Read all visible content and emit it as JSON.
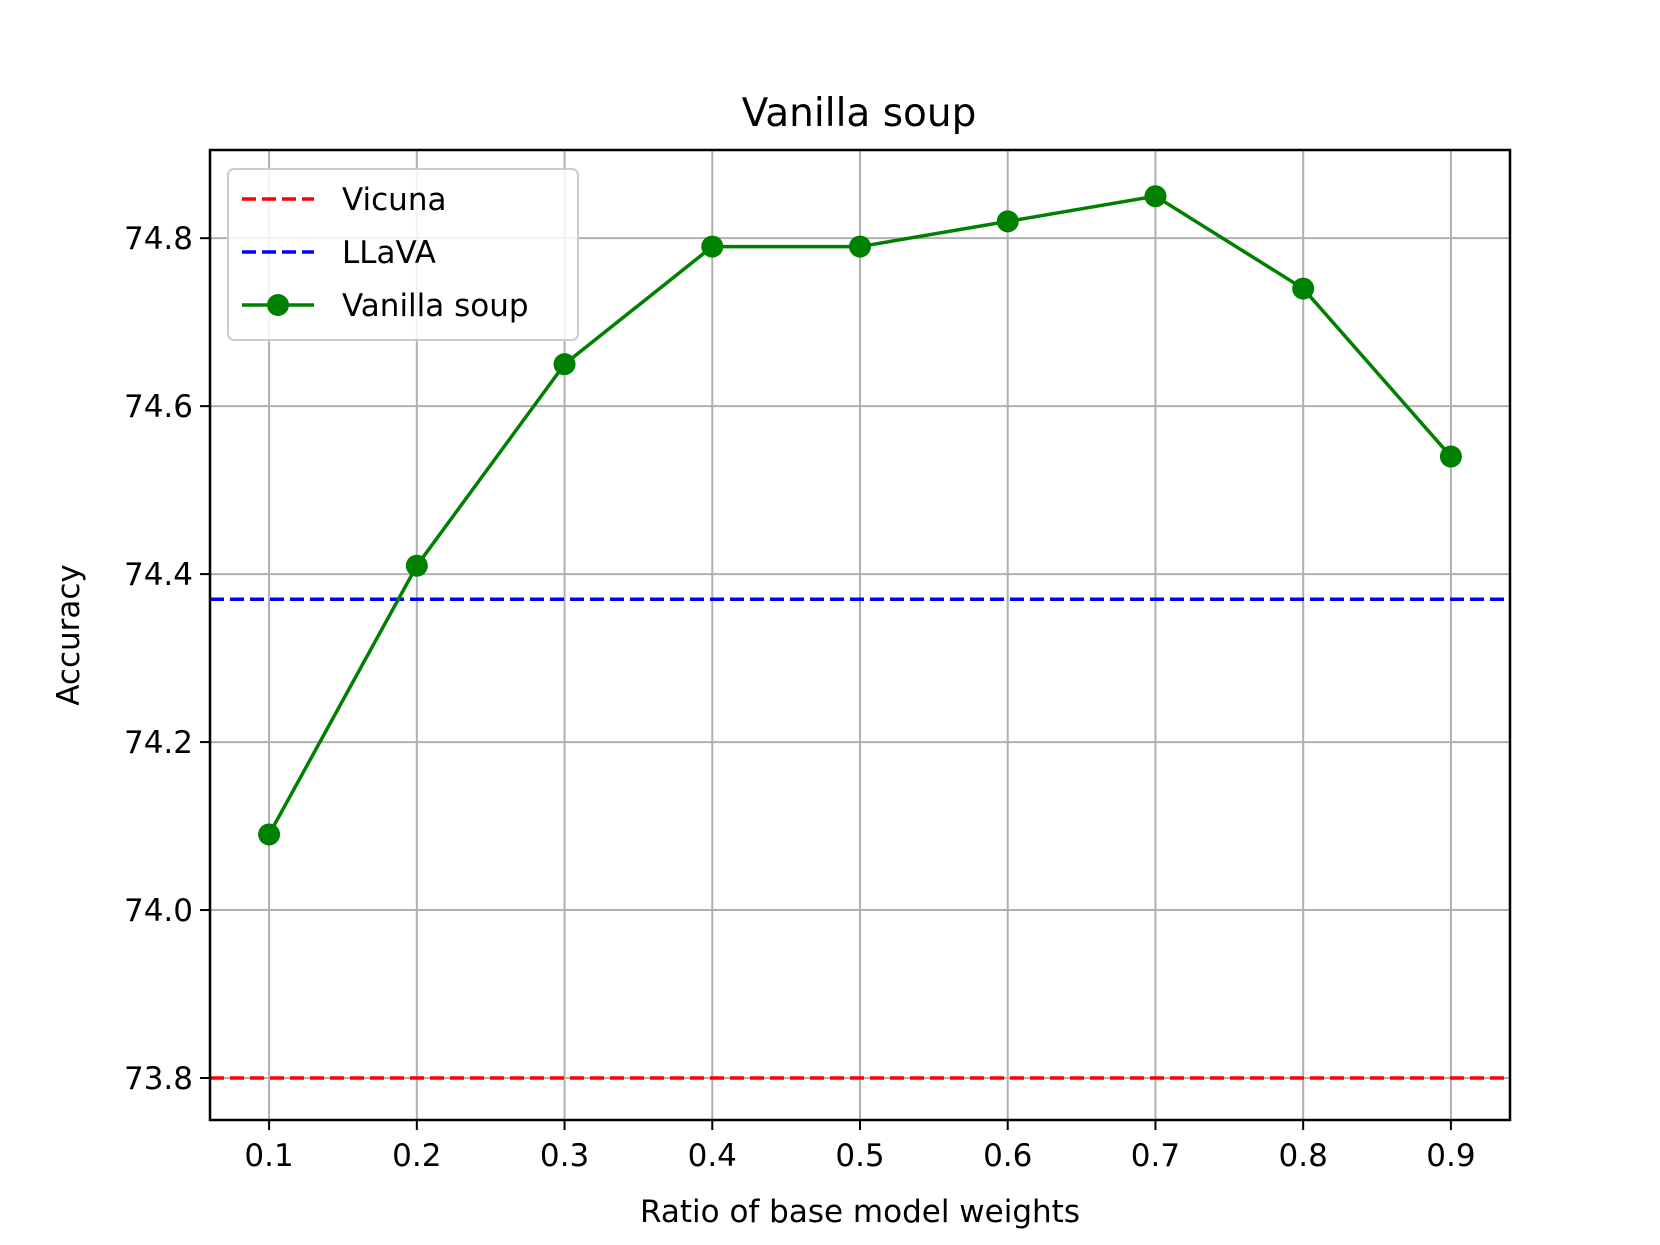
{
  "chart_data": {
    "type": "line",
    "title": "Vanilla soup",
    "xlabel": "Ratio of base model weights",
    "ylabel": "Accuracy",
    "x": [
      0.1,
      0.2,
      0.3,
      0.4,
      0.5,
      0.6,
      0.7,
      0.8,
      0.9
    ],
    "xticks": [
      "0.1",
      "0.2",
      "0.3",
      "0.4",
      "0.5",
      "0.6",
      "0.7",
      "0.8",
      "0.9"
    ],
    "yticks": [
      "73.8",
      "74.0",
      "74.2",
      "74.4",
      "74.6",
      "74.8"
    ],
    "xlim": [
      0.06,
      0.94
    ],
    "ylim": [
      73.75,
      74.905
    ],
    "grid": true,
    "legend_position": "upper-left",
    "series": [
      {
        "name": "Vicuna",
        "style": "dashed-horizontal",
        "color": "#ff0000",
        "y": 73.8
      },
      {
        "name": "LLaVA",
        "style": "dashed-horizontal",
        "color": "#0000ff",
        "y": 74.37
      },
      {
        "name": "Vanilla soup",
        "style": "line-marker",
        "color": "#008000",
        "values": [
          74.09,
          74.41,
          74.65,
          74.79,
          74.79,
          74.82,
          74.85,
          74.74,
          74.54
        ]
      }
    ]
  }
}
